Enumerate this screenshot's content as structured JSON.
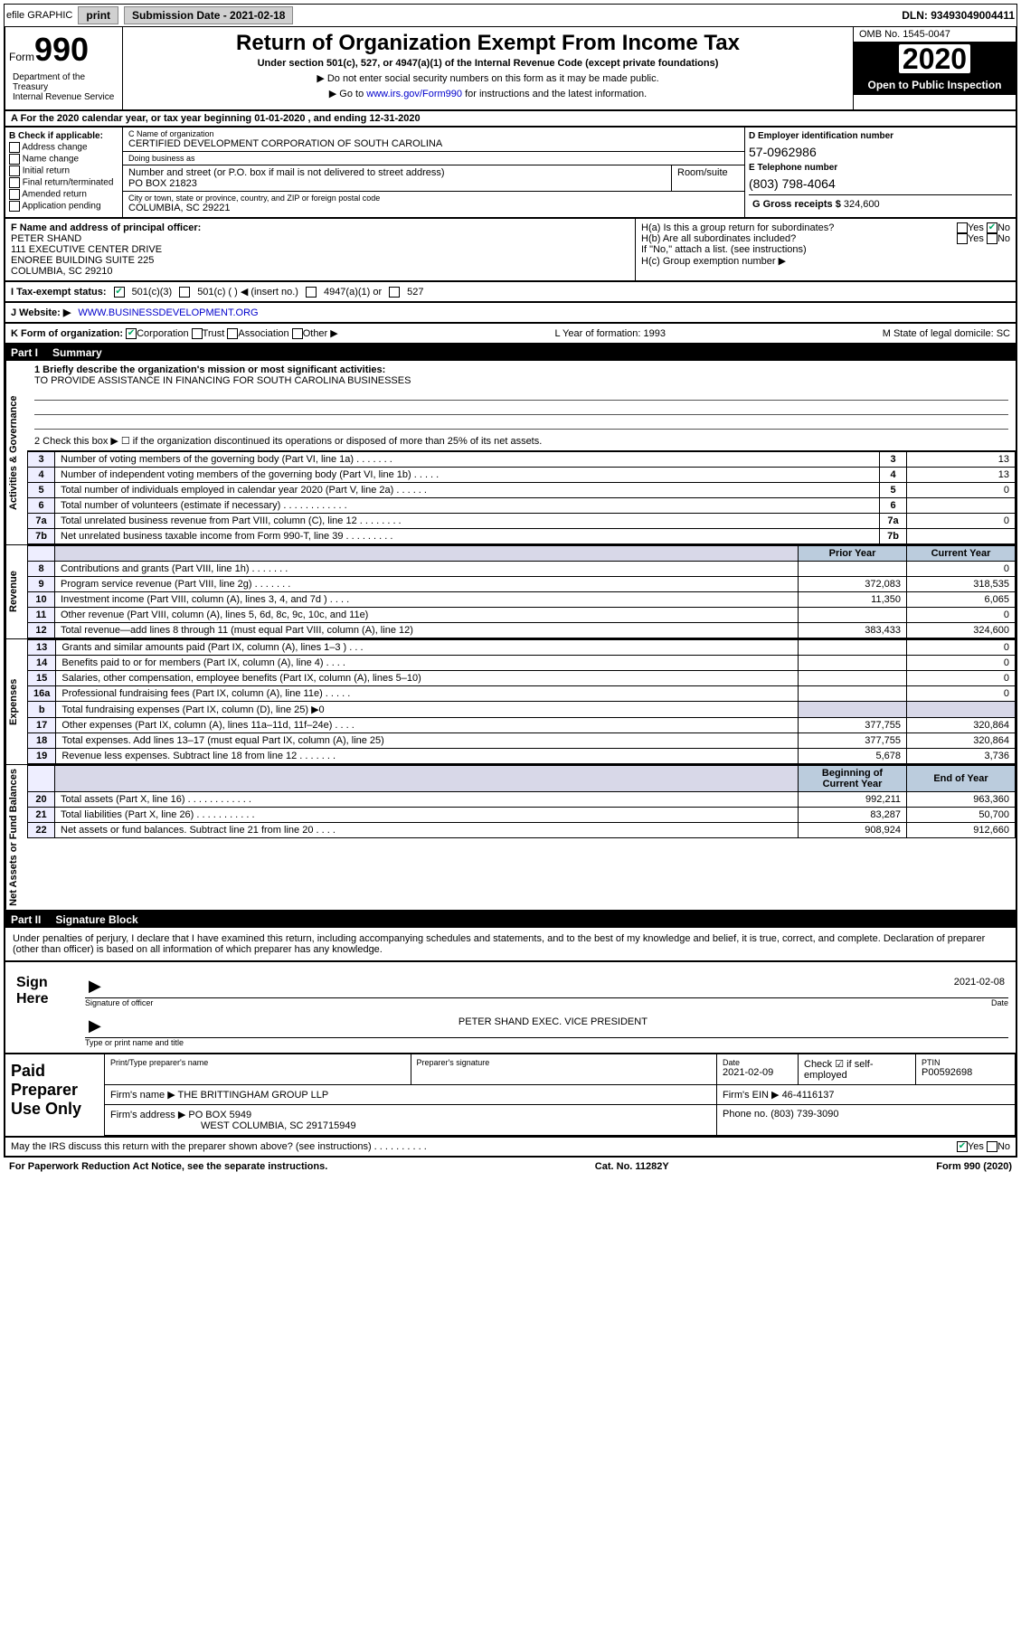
{
  "colors": {
    "link": "#0000cc",
    "headerbg": "#000000",
    "headerfg": "#ffffff",
    "shade": "#d8d8e8",
    "check": "#00aa66"
  },
  "topbar": {
    "efile": "efile GRAPHIC",
    "print": "print",
    "subdate_lbl": "Submission Date - 2021-02-18",
    "dln": "DLN: 93493049004411"
  },
  "header": {
    "form_lbl": "Form",
    "form_num": "990",
    "dept": "Department of the Treasury\nInternal Revenue Service",
    "title": "Return of Organization Exempt From Income Tax",
    "sub": "Under section 501(c), 527, or 4947(a)(1) of the Internal Revenue Code (except private foundations)",
    "note1": "▶ Do not enter social security numbers on this form as it may be made public.",
    "note2_pre": "▶ Go to ",
    "note2_link": "www.irs.gov/Form990",
    "note2_post": " for instructions and the latest information.",
    "omb": "OMB No. 1545-0047",
    "year": "2020",
    "open": "Open to Public Inspection"
  },
  "period": "A For the 2020 calendar year, or tax year beginning 01-01-2020     , and ending 12-31-2020",
  "B": {
    "hdr": "B Check if applicable:",
    "items": [
      "Address change",
      "Name change",
      "Initial return",
      "Final return/terminated",
      "Amended return",
      "Application pending"
    ]
  },
  "C": {
    "name_lbl": "C Name of organization",
    "name": "CERTIFIED DEVELOPMENT CORPORATION OF SOUTH CAROLINA",
    "dba_lbl": "Doing business as",
    "dba": "",
    "addr_lbl": "Number and street (or P.O. box if mail is not delivered to street address)",
    "addr": "PO BOX 21823",
    "room_lbl": "Room/suite",
    "city_lbl": "City or town, state or province, country, and ZIP or foreign postal code",
    "city": "COLUMBIA, SC  29221"
  },
  "D": {
    "lbl": "D Employer identification number",
    "ein": "57-0962986"
  },
  "E": {
    "lbl": "E Telephone number",
    "phone": "(803) 798-4064"
  },
  "G": {
    "lbl": "G Gross receipts $",
    "val": "324,600"
  },
  "F": {
    "lbl": "F  Name and address of principal officer:",
    "name": "PETER SHAND",
    "addr1": "111 EXECUTIVE CENTER DRIVE",
    "addr2": "ENOREE BUILDING SUITE 225",
    "city": "COLUMBIA, SC  29210"
  },
  "H": {
    "a": "H(a)  Is this a group return for subordinates?",
    "b": "H(b)  Are all subordinates included?",
    "ifno": "If \"No,\" attach a list. (see instructions)",
    "c": "H(c)  Group exemption number ▶",
    "yes": "Yes",
    "no": "No"
  },
  "I": {
    "lbl": "I  Tax-exempt status:",
    "opts": [
      "501(c)(3)",
      "501(c) (  ) ◀ (insert no.)",
      "4947(a)(1) or",
      "527"
    ]
  },
  "J": {
    "lbl": "J  Website: ▶",
    "url": "WWW.BUSINESSDEVELOPMENT.ORG"
  },
  "K": {
    "lbl": "K Form of organization:",
    "opts": [
      "Corporation",
      "Trust",
      "Association",
      "Other ▶"
    ],
    "L": "L Year of formation: 1993",
    "M": "M State of legal domicile: SC"
  },
  "partI": {
    "num": "Part I",
    "title": "Summary"
  },
  "mission": {
    "line1_lbl": "1  Briefly describe the organization's mission or most significant activities:",
    "line1_val": "TO PROVIDE ASSISTANCE IN FINANCING FOR SOUTH CAROLINA BUSINESSES",
    "line2": "2  Check this box ▶ ☐  if the organization discontinued its operations or disposed of more than 25% of its net assets."
  },
  "sections": {
    "gov_label": "Activities & Governance",
    "rev_label": "Revenue",
    "exp_label": "Expenses",
    "net_label": "Net Assets or Fund Balances"
  },
  "gov_rows": [
    {
      "n": "3",
      "t": "Number of voting members of the governing body (Part VI, line 1a)  .   .   .   .   .   .   .",
      "box": "3",
      "cur": "13"
    },
    {
      "n": "4",
      "t": "Number of independent voting members of the governing body (Part VI, line 1b)  .   .   .   .   .",
      "box": "4",
      "cur": "13"
    },
    {
      "n": "5",
      "t": "Total number of individuals employed in calendar year 2020 (Part V, line 2a)  .   .   .   .   .   .",
      "box": "5",
      "cur": "0"
    },
    {
      "n": "6",
      "t": "Total number of volunteers (estimate if necessary)   .   .   .   .   .   .   .   .   .   .   .   .",
      "box": "6",
      "cur": ""
    },
    {
      "n": "7a",
      "t": "Total unrelated business revenue from Part VIII, column (C), line 12  .   .   .   .   .   .   .   .",
      "box": "7a",
      "cur": "0"
    },
    {
      "n": "7b",
      "t": "Net unrelated business taxable income from Form 990-T, line 39   .   .   .   .   .   .   .   .   .",
      "box": "7b",
      "cur": ""
    }
  ],
  "col_hdrs": {
    "prior": "Prior Year",
    "current": "Current Year",
    "begin": "Beginning of Current Year",
    "end": "End of Year"
  },
  "rev_rows": [
    {
      "n": "8",
      "t": "Contributions and grants (Part VIII, line 1h)   .   .   .   .   .   .   .",
      "p": "",
      "c": "0"
    },
    {
      "n": "9",
      "t": "Program service revenue (Part VIII, line 2g)   .   .   .   .   .   .   .",
      "p": "372,083",
      "c": "318,535"
    },
    {
      "n": "10",
      "t": "Investment income (Part VIII, column (A), lines 3, 4, and 7d )   .   .   .   .",
      "p": "11,350",
      "c": "6,065"
    },
    {
      "n": "11",
      "t": "Other revenue (Part VIII, column (A), lines 5, 6d, 8c, 9c, 10c, and 11e)",
      "p": "",
      "c": "0"
    },
    {
      "n": "12",
      "t": "Total revenue—add lines 8 through 11 (must equal Part VIII, column (A), line 12)",
      "p": "383,433",
      "c": "324,600"
    }
  ],
  "exp_rows": [
    {
      "n": "13",
      "t": "Grants and similar amounts paid (Part IX, column (A), lines 1–3 )   .   .   .",
      "p": "",
      "c": "0"
    },
    {
      "n": "14",
      "t": "Benefits paid to or for members (Part IX, column (A), line 4)   .   .   .   .",
      "p": "",
      "c": "0"
    },
    {
      "n": "15",
      "t": "Salaries, other compensation, employee benefits (Part IX, column (A), lines 5–10)",
      "p": "",
      "c": "0"
    },
    {
      "n": "16a",
      "t": "Professional fundraising fees (Part IX, column (A), line 11e)   .   .   .   .   .",
      "p": "",
      "c": "0"
    },
    {
      "n": "b",
      "t": "Total fundraising expenses (Part IX, column (D), line 25) ▶0",
      "p": "—shade—",
      "c": "—shade—"
    },
    {
      "n": "17",
      "t": "Other expenses (Part IX, column (A), lines 11a–11d, 11f–24e)   .   .   .   .",
      "p": "377,755",
      "c": "320,864"
    },
    {
      "n": "18",
      "t": "Total expenses. Add lines 13–17 (must equal Part IX, column (A), line 25)",
      "p": "377,755",
      "c": "320,864"
    },
    {
      "n": "19",
      "t": "Revenue less expenses. Subtract line 18 from line 12   .   .   .   .   .   .   .",
      "p": "5,678",
      "c": "3,736"
    }
  ],
  "net_rows": [
    {
      "n": "20",
      "t": "Total assets (Part X, line 16)   .   .   .   .   .   .   .   .   .   .   .   .",
      "p": "992,211",
      "c": "963,360"
    },
    {
      "n": "21",
      "t": "Total liabilities (Part X, line 26)   .   .   .   .   .   .   .   .   .   .   .",
      "p": "83,287",
      "c": "50,700"
    },
    {
      "n": "22",
      "t": "Net assets or fund balances. Subtract line 21 from line 20   .   .   .   .",
      "p": "908,924",
      "c": "912,660"
    }
  ],
  "partII": {
    "num": "Part II",
    "title": "Signature Block"
  },
  "decl": "Under penalties of perjury, I declare that I have examined this return, including accompanying schedules and statements, and to the best of my knowledge and belief, it is true, correct, and complete. Declaration of preparer (other than officer) is based on all information of which preparer has any knowledge.",
  "sign": {
    "here": "Sign Here",
    "sig_lbl": "Signature of officer",
    "date_lbl": "Date",
    "date": "2021-02-08",
    "name": "PETER SHAND  EXEC. VICE PRESIDENT",
    "name_lbl": "Type or print name and title"
  },
  "paid": {
    "hdr": "Paid Preparer Use Only",
    "r1": {
      "a": "Print/Type preparer's name",
      "b": "Preparer's signature",
      "c_lbl": "Date",
      "c": "2021-02-09",
      "d": "Check ☑ if self-employed",
      "e_lbl": "PTIN",
      "e": "P00592698"
    },
    "r2": {
      "a_lbl": "Firm's name    ▶",
      "a": "THE BRITTINGHAM GROUP LLP",
      "b_lbl": "Firm's EIN ▶",
      "b": "46-4116137"
    },
    "r3": {
      "a_lbl": "Firm's address ▶",
      "a": "PO BOX 5949",
      "a2": "WEST COLUMBIA, SC  291715949",
      "b_lbl": "Phone no.",
      "b": "(803) 739-3090"
    }
  },
  "discuss": {
    "q": "May the IRS discuss this return with the preparer shown above? (see instructions)   .   .   .   .   .   .   .   .   .   .",
    "yes": "Yes",
    "no": "No"
  },
  "footer": {
    "pra": "For Paperwork Reduction Act Notice, see the separate instructions.",
    "cat": "Cat. No. 11282Y",
    "form": "Form 990 (2020)"
  }
}
